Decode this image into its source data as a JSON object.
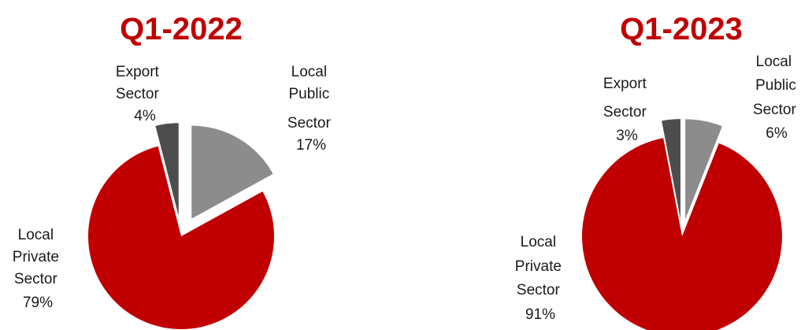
{
  "colors": {
    "title": "#c00000",
    "local_private": "#c00000",
    "local_public": "#8c8c8c",
    "export": "#4d4d4d"
  },
  "chart_data": [
    {
      "type": "pie",
      "title": "Q1-2022",
      "slices": [
        {
          "label": [
            "Local",
            "Public",
            "Sector"
          ],
          "value": 17,
          "value_label": "17%",
          "color": "#8c8c8c",
          "exploded": true
        },
        {
          "label": [
            "Local",
            "Private",
            "Sector"
          ],
          "value": 79,
          "value_label": "79%",
          "color": "#c00000",
          "exploded": false
        },
        {
          "label": [
            "Export",
            "Sector"
          ],
          "value": 4,
          "value_label": "4%",
          "color": "#4d4d4d",
          "exploded": true
        }
      ],
      "legend": "none",
      "data_labels": "outside"
    },
    {
      "type": "pie",
      "title": "Q1-2023",
      "slices": [
        {
          "label": [
            "Local",
            "Public",
            "Sector"
          ],
          "value": 6,
          "value_label": "6%",
          "color": "#8c8c8c",
          "exploded": true
        },
        {
          "label": [
            "Local",
            "Private",
            "Sector"
          ],
          "value": 91,
          "value_label": "91%",
          "color": "#c00000",
          "exploded": false
        },
        {
          "label": [
            "Export",
            "Sector"
          ],
          "value": 3,
          "value_label": "3%",
          "color": "#4d4d4d",
          "exploded": true
        }
      ],
      "legend": "none",
      "data_labels": "outside"
    }
  ]
}
